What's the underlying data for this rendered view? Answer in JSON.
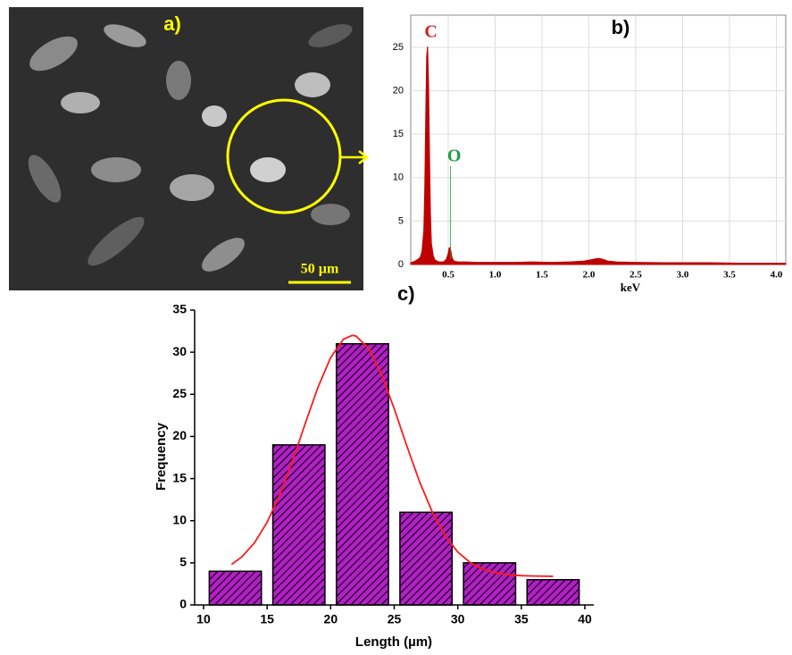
{
  "sem_image": {
    "panel_label": "a)",
    "scale_bar_label": "50 µm"
  },
  "chart_data": [
    {
      "type": "line",
      "panel_label": "b)",
      "x_label": "keV",
      "color": "#c00000",
      "grid": true,
      "x": [
        0.1,
        0.15,
        0.2,
        0.22,
        0.24,
        0.25,
        0.26,
        0.27,
        0.28,
        0.29,
        0.3,
        0.31,
        0.32,
        0.34,
        0.36,
        0.4,
        0.45,
        0.48,
        0.5,
        0.51,
        0.52,
        0.53,
        0.54,
        0.56,
        0.6,
        0.7,
        0.8,
        1.0,
        1.2,
        1.4,
        1.6,
        1.8,
        1.95,
        2.05,
        2.1,
        2.15,
        2.2,
        2.3,
        2.5,
        2.8,
        3.0,
        3.3,
        3.6,
        3.9,
        4.1
      ],
      "values": [
        0.2,
        0.4,
        0.8,
        1.5,
        4,
        9,
        17,
        24,
        25.1,
        21,
        13,
        6,
        2.5,
        1,
        0.5,
        0.3,
        0.3,
        0.6,
        1.3,
        1.9,
        1.95,
        1.5,
        0.8,
        0.4,
        0.3,
        0.3,
        0.25,
        0.25,
        0.25,
        0.3,
        0.25,
        0.3,
        0.4,
        0.6,
        0.7,
        0.6,
        0.4,
        0.3,
        0.25,
        0.2,
        0.2,
        0.2,
        0.15,
        0.15,
        0.15
      ],
      "annotations": [
        {
          "text": "C",
          "x": 0.277,
          "color": "#d42020"
        },
        {
          "text": "O",
          "x": 0.525,
          "color": "#1f9e40"
        }
      ],
      "xlim": [
        0.1,
        4.1
      ],
      "ylim": [
        0,
        28.7
      ],
      "xticks": [
        0.5,
        {
          "value": 1,
          "label": "1.0"
        },
        1.5,
        {
          "value": 2,
          "label": "2.0"
        },
        2.5,
        {
          "value": 3,
          "label": "3.0"
        },
        3.5,
        {
          "value": 4,
          "label": "4.0"
        }
      ],
      "yticks": [
        0,
        5,
        10,
        15,
        20,
        25
      ]
    },
    {
      "type": "histogram",
      "panel_label": "c)",
      "x_label": "Length (µm)",
      "y_label": "Frequency",
      "color": "#b41ec8",
      "bins": [
        10,
        15,
        20,
        25,
        30,
        35,
        40
      ],
      "values": [
        4,
        19,
        31,
        11,
        5,
        3
      ],
      "fit": {
        "color": "#ff1a1a",
        "x": [
          12.2,
          13,
          14,
          15,
          16,
          17,
          18,
          19,
          20,
          21,
          21.7,
          22,
          23,
          24,
          25,
          26,
          27,
          28,
          29,
          30,
          31,
          32,
          33,
          34,
          35,
          36,
          37.5
        ],
        "values": [
          4.81,
          5.69,
          7.36,
          9.81,
          13.08,
          17.1,
          21.53,
          25.83,
          29.37,
          31.54,
          32,
          31.91,
          30.43,
          27.38,
          23.3,
          18.84,
          14.61,
          11.02,
          8.24,
          6.28,
          5,
          4.23,
          3.81,
          3.58,
          3.48,
          3.43,
          3.4
        ]
      },
      "xlim": [
        9.3,
        40.7
      ],
      "ylim": [
        0,
        35
      ],
      "xticks": [
        10,
        15,
        20,
        25,
        30,
        35,
        40
      ],
      "yticks": [
        0,
        5,
        10,
        15,
        20,
        25,
        30,
        35
      ]
    }
  ]
}
